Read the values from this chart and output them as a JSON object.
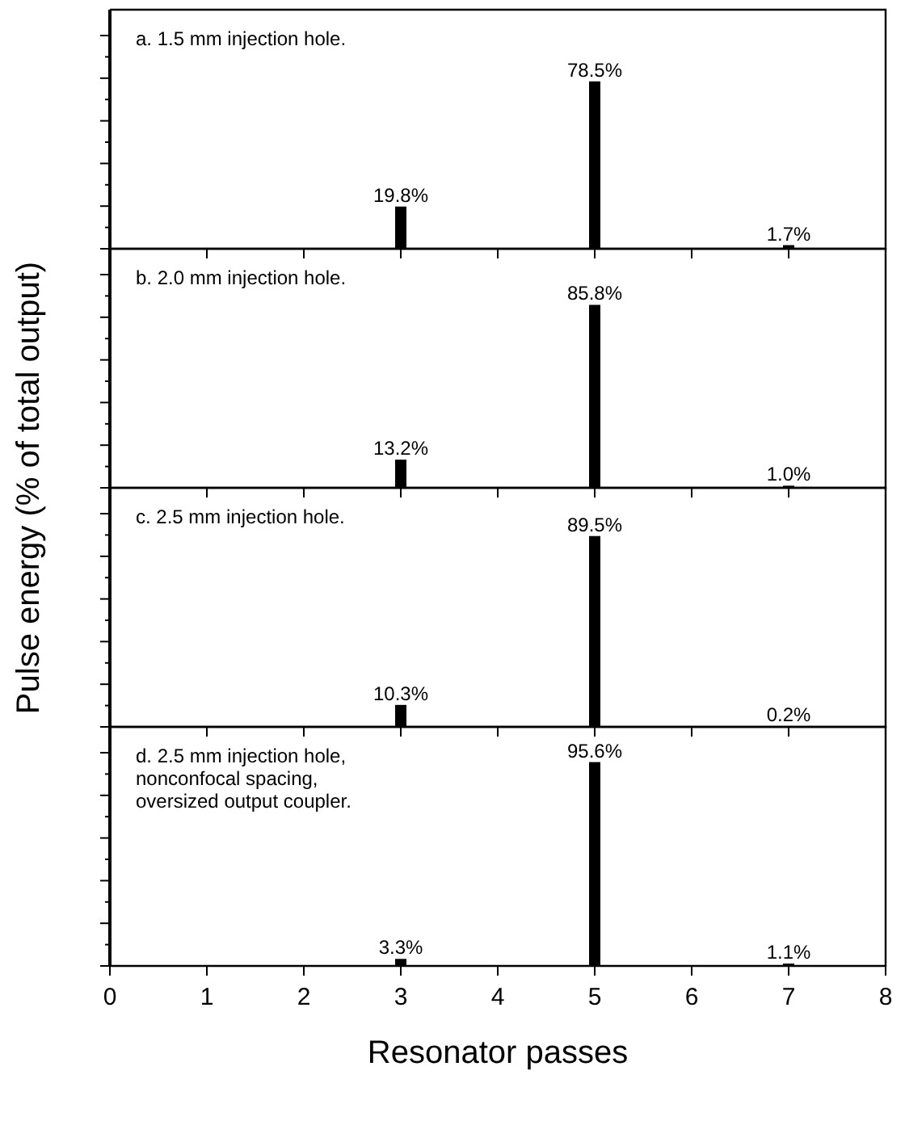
{
  "chart_data": [
    {
      "type": "bar",
      "title": "a. 1.5 mm injection hole.",
      "ylabel": "Pulse energy (% of total output)",
      "x": [
        3,
        5,
        7
      ],
      "values": [
        19.8,
        78.5,
        1.7
      ],
      "value_labels": [
        "19.8%",
        "78.5%",
        "1.7%"
      ],
      "color": "#000000",
      "xlim": [
        0,
        8
      ],
      "xticks": [
        0,
        1,
        2,
        3,
        4,
        5,
        6,
        7,
        8
      ],
      "tick_labels": false
    },
    {
      "type": "bar",
      "title": "b. 2.0 mm injection hole.",
      "x": [
        3,
        5,
        7
      ],
      "values": [
        13.2,
        85.8,
        1.0
      ],
      "value_labels": [
        "13.2%",
        "85.8%",
        "1.0%"
      ],
      "color": "#000000",
      "xlim": [
        0,
        8
      ],
      "xticks": [
        0,
        1,
        2,
        3,
        4,
        5,
        6,
        7,
        8
      ],
      "tick_labels": false
    },
    {
      "type": "bar",
      "title": "c. 2.5 mm injection hole.",
      "x": [
        3,
        5,
        7
      ],
      "values": [
        10.3,
        89.5,
        0.2
      ],
      "value_labels": [
        "10.3%",
        "89.5%",
        "0.2%"
      ],
      "color": "#000000",
      "xlim": [
        0,
        8
      ],
      "xticks": [
        0,
        1,
        2,
        3,
        4,
        5,
        6,
        7,
        8
      ],
      "tick_labels": false
    },
    {
      "type": "bar",
      "title": "d. 2.5 mm injection hole, nonconfocal spacing, oversized output coupler.",
      "xlabel": "Resonator passes",
      "x": [
        3,
        5,
        7
      ],
      "values": [
        3.3,
        95.6,
        1.1
      ],
      "value_labels": [
        "3.3%",
        "95.6%",
        "1.1%"
      ],
      "color": "#000000",
      "xlim": [
        0,
        8
      ],
      "xticks": [
        0,
        1,
        2,
        3,
        4,
        5,
        6,
        7,
        8
      ],
      "tick_labels": "x"
    }
  ]
}
